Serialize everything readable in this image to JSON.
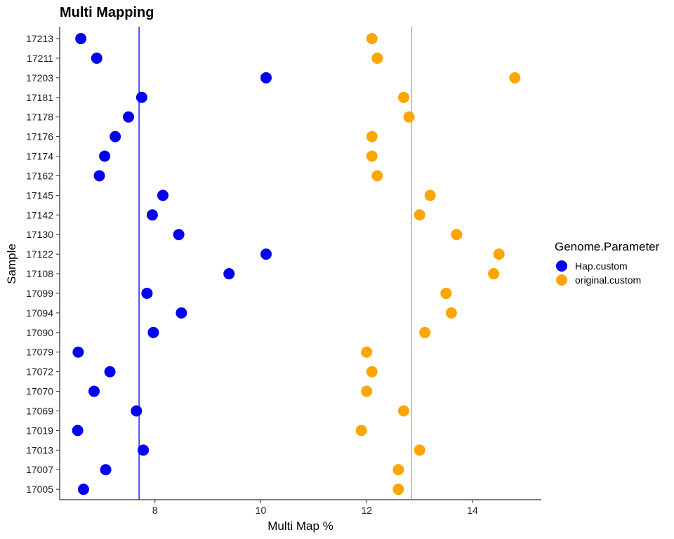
{
  "chart_data": {
    "type": "scatter",
    "title": "Multi Mapping",
    "xlabel": "Multi Map %",
    "ylabel": "Sample",
    "xlim": [
      6.2,
      15.3
    ],
    "x_ticks": [
      8,
      10,
      12,
      14
    ],
    "categories": [
      "17213",
      "17211",
      "17203",
      "17181",
      "17178",
      "17176",
      "17174",
      "17162",
      "17145",
      "17142",
      "17130",
      "17122",
      "17108",
      "17099",
      "17094",
      "17090",
      "17079",
      "17072",
      "17070",
      "17069",
      "17019",
      "17013",
      "17007",
      "17005"
    ],
    "legend_title": "Genome.Parameter",
    "legend_position": "right",
    "grid": false,
    "series": [
      {
        "name": "Hap.custom",
        "color": "#0000ee",
        "mean_line": 7.7,
        "values": [
          6.6,
          6.9,
          10.1,
          7.75,
          7.5,
          7.25,
          7.05,
          6.95,
          8.15,
          7.95,
          8.45,
          10.1,
          9.4,
          7.85,
          8.5,
          7.97,
          6.55,
          7.15,
          6.85,
          7.65,
          6.54,
          7.78,
          7.07,
          6.65
        ]
      },
      {
        "name": "original.custom",
        "color": "#ffa500",
        "mean_line": 12.85,
        "values": [
          12.1,
          12.2,
          14.8,
          12.7,
          12.8,
          12.1,
          12.1,
          12.2,
          13.2,
          13.0,
          13.7,
          14.5,
          14.4,
          13.5,
          13.6,
          13.1,
          12.0,
          12.1,
          12.0,
          12.7,
          11.9,
          13.0,
          12.6,
          12.6
        ]
      }
    ]
  }
}
